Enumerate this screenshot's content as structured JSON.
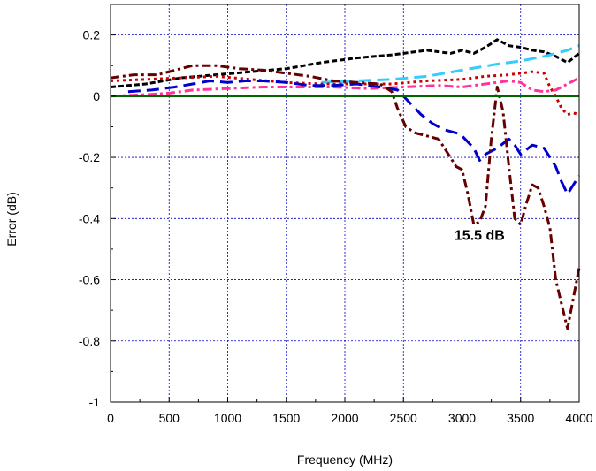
{
  "chart_data": {
    "type": "line",
    "title": "",
    "xlabel": "Frequency (MHz)",
    "ylabel": "Error (dB)",
    "xlim": [
      0,
      4000
    ],
    "ylim": [
      -1,
      0.3
    ],
    "x_ticks": [
      0,
      500,
      1000,
      1500,
      2000,
      2500,
      3000,
      3500,
      4000
    ],
    "x_tick_labels": [
      "0",
      "500",
      "1000",
      "1500",
      "2000",
      "2500",
      "3000",
      "3500",
      "4000"
    ],
    "y_ticks": [
      0.2,
      0,
      -0.2,
      -0.4,
      -0.6,
      -0.8,
      -1
    ],
    "y_tick_labels": [
      "0.2",
      "0",
      "-0.2",
      "-0.4",
      "-0.6",
      "-0.8",
      "-1"
    ],
    "grid": true,
    "grid_color": "#0000cc",
    "legend": "none",
    "annotations": [
      {
        "text": "15.5 dB",
        "x": 3150,
        "y": -0.47
      }
    ],
    "series": [
      {
        "color": "#000000",
        "dash": "short-dash",
        "points": [
          [
            0,
            0.03
          ],
          [
            300,
            0.04
          ],
          [
            600,
            0.06
          ],
          [
            900,
            0.07
          ],
          [
            1200,
            0.08
          ],
          [
            1500,
            0.09
          ],
          [
            1800,
            0.11
          ],
          [
            2100,
            0.125
          ],
          [
            2400,
            0.135
          ],
          [
            2700,
            0.15
          ],
          [
            2900,
            0.14
          ],
          [
            3000,
            0.15
          ],
          [
            3100,
            0.14
          ],
          [
            3200,
            0.16
          ],
          [
            3300,
            0.185
          ],
          [
            3400,
            0.165
          ],
          [
            3500,
            0.16
          ],
          [
            3600,
            0.15
          ],
          [
            3700,
            0.145
          ],
          [
            3800,
            0.13
          ],
          [
            3900,
            0.11
          ],
          [
            4000,
            0.14
          ]
        ]
      },
      {
        "color": "#33ccff",
        "dash": "long-dash",
        "points": [
          [
            1800,
            0.045
          ],
          [
            2100,
            0.05
          ],
          [
            2400,
            0.055
          ],
          [
            2700,
            0.065
          ],
          [
            3000,
            0.085
          ],
          [
            3300,
            0.105
          ],
          [
            3500,
            0.115
          ],
          [
            3700,
            0.13
          ],
          [
            3900,
            0.15
          ],
          [
            4000,
            0.165
          ]
        ]
      },
      {
        "color": "#cc0000",
        "dash": "dot",
        "points": [
          [
            0,
            0.05
          ],
          [
            300,
            0.055
          ],
          [
            600,
            0.06
          ],
          [
            900,
            0.065
          ],
          [
            1200,
            0.055
          ],
          [
            1500,
            0.045
          ],
          [
            1800,
            0.04
          ],
          [
            2100,
            0.04
          ],
          [
            2400,
            0.04
          ],
          [
            2700,
            0.05
          ],
          [
            3000,
            0.055
          ],
          [
            3200,
            0.065
          ],
          [
            3400,
            0.07
          ],
          [
            3600,
            0.08
          ],
          [
            3700,
            0.075
          ],
          [
            3750,
            0.03
          ],
          [
            3800,
            0.0
          ],
          [
            3850,
            -0.04
          ],
          [
            3900,
            -0.06
          ],
          [
            3950,
            -0.055
          ],
          [
            4000,
            -0.06
          ]
        ]
      },
      {
        "color": "#ff3399",
        "dash": "dash-dot",
        "points": [
          [
            0,
            0.0
          ],
          [
            300,
            0.005
          ],
          [
            500,
            0.01
          ],
          [
            700,
            0.02
          ],
          [
            1000,
            0.025
          ],
          [
            1300,
            0.03
          ],
          [
            1600,
            0.03
          ],
          [
            1900,
            0.03
          ],
          [
            2200,
            0.025
          ],
          [
            2500,
            0.03
          ],
          [
            2800,
            0.035
          ],
          [
            3000,
            0.03
          ],
          [
            3200,
            0.04
          ],
          [
            3400,
            0.05
          ],
          [
            3500,
            0.045
          ],
          [
            3600,
            0.02
          ],
          [
            3700,
            0.015
          ],
          [
            3800,
            0.02
          ],
          [
            3900,
            0.04
          ],
          [
            4000,
            0.06
          ]
        ]
      },
      {
        "color": "#0000cc",
        "dash": "long-dash",
        "points": [
          [
            150,
            0.015
          ],
          [
            350,
            0.02
          ],
          [
            550,
            0.03
          ],
          [
            700,
            0.04
          ],
          [
            850,
            0.05
          ],
          [
            1000,
            0.045
          ],
          [
            1150,
            0.05
          ],
          [
            1300,
            0.05
          ],
          [
            1500,
            0.045
          ],
          [
            1700,
            0.035
          ],
          [
            1900,
            0.035
          ],
          [
            2100,
            0.04
          ],
          [
            2300,
            0.03
          ],
          [
            2450,
            0.02
          ],
          [
            2550,
            -0.02
          ],
          [
            2650,
            -0.06
          ],
          [
            2750,
            -0.09
          ],
          [
            2850,
            -0.11
          ],
          [
            2950,
            -0.12
          ],
          [
            3000,
            -0.13
          ],
          [
            3100,
            -0.17
          ],
          [
            3150,
            -0.21
          ],
          [
            3200,
            -0.19
          ],
          [
            3300,
            -0.17
          ],
          [
            3400,
            -0.14
          ],
          [
            3450,
            -0.16
          ],
          [
            3500,
            -0.19
          ],
          [
            3600,
            -0.16
          ],
          [
            3700,
            -0.17
          ],
          [
            3800,
            -0.23
          ],
          [
            3850,
            -0.28
          ],
          [
            3900,
            -0.32
          ],
          [
            3950,
            -0.29
          ],
          [
            4000,
            -0.26
          ]
        ]
      },
      {
        "color": "#660000",
        "dash": "dash-dot",
        "points": [
          [
            0,
            0.06
          ],
          [
            200,
            0.07
          ],
          [
            400,
            0.07
          ],
          [
            600,
            0.09
          ],
          [
            700,
            0.1
          ],
          [
            900,
            0.1
          ],
          [
            1100,
            0.09
          ],
          [
            1300,
            0.085
          ],
          [
            1500,
            0.075
          ],
          [
            1700,
            0.065
          ],
          [
            1900,
            0.05
          ],
          [
            2100,
            0.045
          ],
          [
            2300,
            0.04
          ],
          [
            2400,
            0.015
          ],
          [
            2450,
            -0.04
          ],
          [
            2520,
            -0.1
          ],
          [
            2600,
            -0.12
          ],
          [
            2700,
            -0.13
          ],
          [
            2800,
            -0.14
          ],
          [
            2900,
            -0.2
          ],
          [
            2950,
            -0.23
          ],
          [
            3000,
            -0.24
          ],
          [
            3050,
            -0.32
          ],
          [
            3100,
            -0.42
          ],
          [
            3150,
            -0.41
          ],
          [
            3200,
            -0.36
          ],
          [
            3250,
            -0.14
          ],
          [
            3300,
            0.03
          ],
          [
            3350,
            -0.05
          ],
          [
            3400,
            -0.23
          ],
          [
            3450,
            -0.4
          ],
          [
            3500,
            -0.42
          ],
          [
            3550,
            -0.35
          ],
          [
            3600,
            -0.29
          ],
          [
            3650,
            -0.3
          ],
          [
            3700,
            -0.36
          ],
          [
            3750,
            -0.43
          ],
          [
            3800,
            -0.6
          ],
          [
            3850,
            -0.68
          ],
          [
            3900,
            -0.76
          ],
          [
            3950,
            -0.66
          ],
          [
            4000,
            -0.56
          ]
        ]
      },
      {
        "color": "#006600",
        "dash": "solid",
        "points": [
          [
            0,
            0
          ],
          [
            4000,
            0
          ]
        ]
      }
    ]
  }
}
